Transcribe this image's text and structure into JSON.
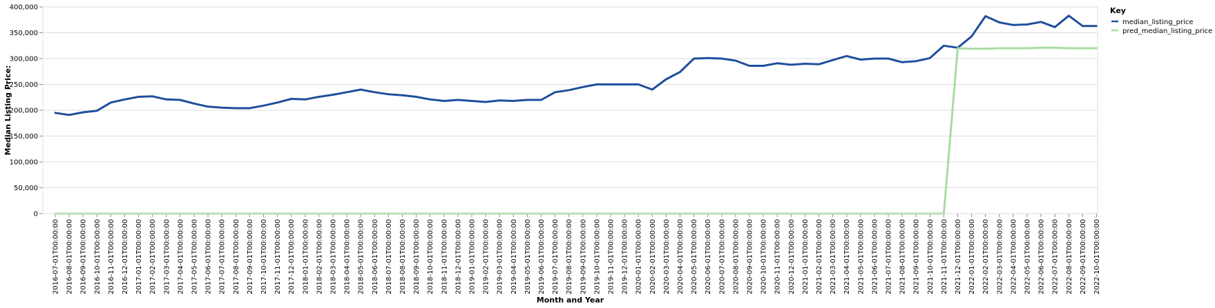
{
  "chart_data": {
    "type": "line",
    "xlabel": "Month and Year",
    "ylabel": "Median Listing Price:",
    "ylim": [
      0,
      400000
    ],
    "yticks": [
      "0",
      "50,000",
      "100,000",
      "150,000",
      "200,000",
      "250,000",
      "300,000",
      "350,000",
      "400,000"
    ],
    "ytick_values": [
      0,
      50000,
      100000,
      150000,
      200000,
      250000,
      300000,
      350000,
      400000
    ],
    "grid": true,
    "legend": {
      "title": "Key",
      "placement": "top-right",
      "entries": [
        "median_listing_price",
        "pred_median_listing_price"
      ]
    },
    "x": [
      "2016-07-01T00:00:00",
      "2016-08-01T00:00:00",
      "2016-09-01T00:00:00",
      "2016-10-01T00:00:00",
      "2016-11-01T00:00:00",
      "2016-12-01T00:00:00",
      "2017-01-01T00:00:00",
      "2017-02-01T00:00:00",
      "2017-03-01T00:00:00",
      "2017-04-01T00:00:00",
      "2017-05-01T00:00:00",
      "2017-06-01T00:00:00",
      "2017-07-01T00:00:00",
      "2017-08-01T00:00:00",
      "2017-09-01T00:00:00",
      "2017-10-01T00:00:00",
      "2017-11-01T00:00:00",
      "2017-12-01T00:00:00",
      "2018-01-01T00:00:00",
      "2018-02-01T00:00:00",
      "2018-03-01T00:00:00",
      "2018-04-01T00:00:00",
      "2018-05-01T00:00:00",
      "2018-06-01T00:00:00",
      "2018-07-01T00:00:00",
      "2018-08-01T00:00:00",
      "2018-09-01T00:00:00",
      "2018-10-01T00:00:00",
      "2018-11-01T00:00:00",
      "2018-12-01T00:00:00",
      "2019-01-01T00:00:00",
      "2019-02-01T00:00:00",
      "2019-03-01T00:00:00",
      "2019-04-01T00:00:00",
      "2019-05-01T00:00:00",
      "2019-06-01T00:00:00",
      "2019-07-01T00:00:00",
      "2019-08-01T00:00:00",
      "2019-09-01T00:00:00",
      "2019-10-01T00:00:00",
      "2019-11-01T00:00:00",
      "2019-12-01T00:00:00",
      "2020-01-01T00:00:00",
      "2020-02-01T00:00:00",
      "2020-03-01T00:00:00",
      "2020-04-01T00:00:00",
      "2020-05-01T00:00:00",
      "2020-06-01T00:00:00",
      "2020-07-01T00:00:00",
      "2020-08-01T00:00:00",
      "2020-09-01T00:00:00",
      "2020-10-01T00:00:00",
      "2020-11-01T00:00:00",
      "2020-12-01T00:00:00",
      "2021-01-01T00:00:00",
      "2021-02-01T00:00:00",
      "2021-03-01T00:00:00",
      "2021-04-01T00:00:00",
      "2021-05-01T00:00:00",
      "2021-06-01T00:00:00",
      "2021-07-01T00:00:00",
      "2021-08-01T00:00:00",
      "2021-09-01T00:00:00",
      "2021-10-01T00:00:00",
      "2021-11-01T00:00:00",
      "2021-12-01T00:00:00",
      "2022-01-01T00:00:00",
      "2022-02-01T00:00:00",
      "2022-03-01T00:00:00",
      "2022-04-01T00:00:00",
      "2022-05-01T00:00:00",
      "2022-06-01T00:00:00",
      "2022-07-01T00:00:00",
      "2022-08-01T00:00:00",
      "2022-09-01T00:00:00",
      "2022-10-01T00:00:00"
    ],
    "series": [
      {
        "name": "median_listing_price",
        "color": "#1f4e9c",
        "values": [
          195000,
          191000,
          196000,
          199000,
          215000,
          221000,
          226000,
          227000,
          221000,
          220000,
          213000,
          207000,
          205000,
          204000,
          204000,
          209000,
          215000,
          222000,
          221000,
          226000,
          230000,
          235000,
          240000,
          235000,
          231000,
          229000,
          226000,
          221000,
          218000,
          220000,
          218000,
          216000,
          219000,
          218000,
          220000,
          220000,
          235000,
          239000,
          245000,
          250000,
          250000,
          250000,
          250000,
          240000,
          260000,
          274000,
          300000,
          301000,
          300000,
          296000,
          286000,
          286000,
          291000,
          288000,
          290000,
          289000,
          297000,
          305000,
          298000,
          300000,
          300000,
          293000,
          295000,
          301000,
          325000,
          321000,
          343000,
          382000,
          370000,
          365000,
          366000,
          371000,
          361000,
          383000,
          363000,
          363000
        ]
      },
      {
        "name": "pred_median_listing_price",
        "color": "#a7dca0",
        "values": [
          0,
          0,
          0,
          0,
          0,
          0,
          0,
          0,
          0,
          0,
          0,
          0,
          0,
          0,
          0,
          0,
          0,
          0,
          0,
          0,
          0,
          0,
          0,
          0,
          0,
          0,
          0,
          0,
          0,
          0,
          0,
          0,
          0,
          0,
          0,
          0,
          0,
          0,
          0,
          0,
          0,
          0,
          0,
          0,
          0,
          0,
          0,
          0,
          0,
          0,
          0,
          0,
          0,
          0,
          0,
          0,
          0,
          0,
          0,
          0,
          0,
          0,
          0,
          0,
          0,
          320000,
          319000,
          319000,
          320000,
          320000,
          320000,
          321000,
          321000,
          320000,
          320000,
          320000
        ]
      }
    ]
  }
}
